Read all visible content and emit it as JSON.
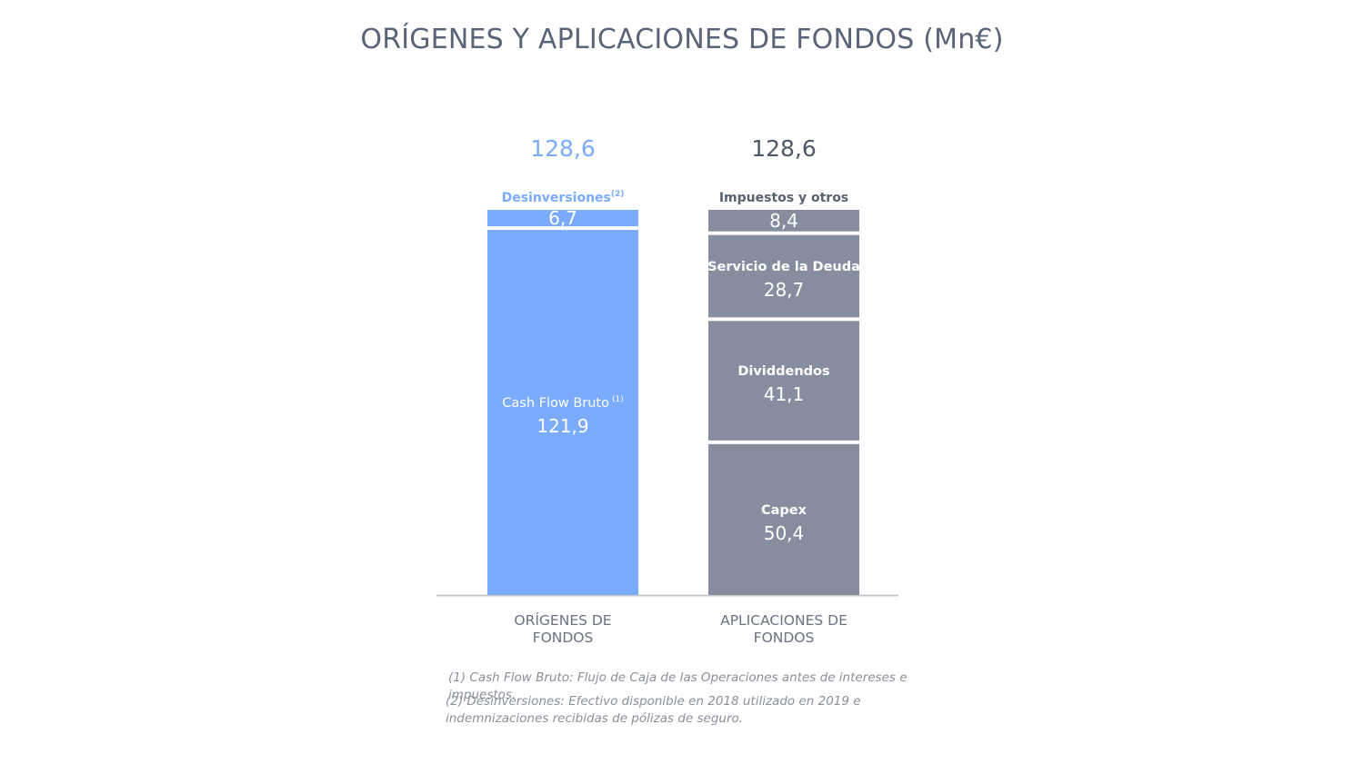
{
  "chart_data": {
    "type": "bar",
    "stacked": true,
    "title": "ORÍGENES Y APLICACIONES DE FONDOS (Mn€)",
    "ylim": [
      0,
      128.6
    ],
    "grid": false,
    "columns": [
      {
        "name_lines": [
          "ORÍGENES DE",
          "FONDOS"
        ],
        "total": "128,6",
        "color": "#7aabfd",
        "segments": [
          {
            "label": "Cash Flow Bruto",
            "note": "(1)",
            "value": 121.9,
            "display": "121,9"
          },
          {
            "label": "Desinversiones",
            "note": "(2)",
            "value": 6.7,
            "display": "6,7"
          }
        ]
      },
      {
        "name_lines": [
          "APLICACIONES DE",
          "FONDOS"
        ],
        "total": "128,6",
        "color": "#858d9e",
        "segments": [
          {
            "label": "Capex",
            "note": "",
            "value": 50.4,
            "display": "50,4"
          },
          {
            "label": "Dividdendos",
            "note": "",
            "value": 41.1,
            "display": "41,1"
          },
          {
            "label": "Servicio de la Deuda",
            "note": "",
            "value": 28.7,
            "display": "28,7"
          },
          {
            "label": "Impuestos y otros",
            "note": "",
            "value": 8.4,
            "display": "8,4"
          }
        ]
      }
    ]
  },
  "colors": {
    "origenes": "#7aabfd",
    "aplicaciones": "#858d9e",
    "total_origenes": "#7aabfd",
    "total_aplicaciones": "#4f5768",
    "axis": "#c8c8c8",
    "category_label": "#6b7280"
  },
  "footnotes": {
    "note1": "(1) Cash Flow Bruto: Flujo de Caja de las Operaciones antes de intereses e impuestos.",
    "note2": "(2) Desinversiones: Efectivo disponible en 2018 utilizado en 2019 e indemnizaciones recibidas de pólizas de seguro."
  }
}
